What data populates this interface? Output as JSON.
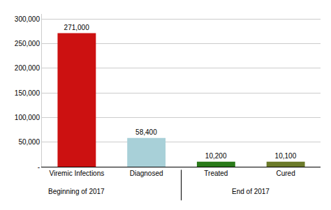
{
  "chart_data": {
    "type": "bar",
    "categories": [
      "Viremic Infections",
      "Diagnosed",
      "Treated",
      "Cured"
    ],
    "values": [
      271000,
      58400,
      10200,
      10100
    ],
    "value_labels": [
      "271,000",
      "58,400",
      "10,200",
      "10,100"
    ],
    "colors": [
      "#cc1111",
      "#a8d0d8",
      "#2a7a1a",
      "#6b7a2a"
    ],
    "data_labels": true,
    "ylim": [
      0,
      310000
    ],
    "yticks": [
      {
        "value": 0,
        "label": "-"
      },
      {
        "value": 50000,
        "label": "50,000"
      },
      {
        "value": 100000,
        "label": "100,000"
      },
      {
        "value": 150000,
        "label": "150,000"
      },
      {
        "value": 200000,
        "label": "200,000"
      },
      {
        "value": 250000,
        "label": "250,000"
      },
      {
        "value": 300000,
        "label": "300,000"
      }
    ],
    "grid": true,
    "annotations": [
      {
        "text": "Beginning of 2017",
        "categories": [
          "Viremic Infections"
        ]
      },
      {
        "text": "End of 2017",
        "categories": [
          "Treated",
          "Cured"
        ]
      }
    ]
  }
}
